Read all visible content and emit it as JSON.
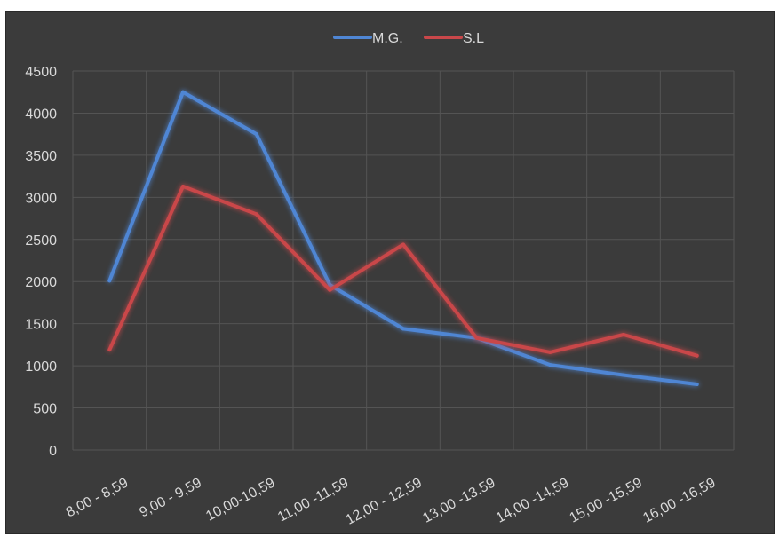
{
  "chart_data": {
    "type": "line",
    "title": "",
    "xlabel": "",
    "ylabel": "",
    "categories": [
      "8,00 - 8,59",
      "9,00 - 9,59",
      "10,00-10,59",
      "11,00 -11,59",
      "12,00 - 12,59",
      "13,00 -13,59",
      "14,00 -14,59",
      "15,00 -15,59",
      "16,00 -16,59"
    ],
    "series": [
      {
        "name": "M.G.",
        "color": "#4f86d4",
        "values": [
          2010,
          4250,
          3750,
          1960,
          1440,
          1330,
          1010,
          890,
          780
        ]
      },
      {
        "name": "S.L",
        "color": "#c9474a",
        "values": [
          1190,
          3130,
          2800,
          1900,
          2440,
          1330,
          1160,
          1370,
          1120
        ]
      }
    ],
    "ylim": [
      0,
      4500
    ],
    "yticks": [
      0,
      500,
      1000,
      1500,
      2000,
      2500,
      3000,
      3500,
      4000,
      4500
    ],
    "grid": true,
    "legend_position": "top-center",
    "background": "#3b3b3b",
    "gridline_color": "#545454",
    "text_color": "#d9d9d9"
  }
}
